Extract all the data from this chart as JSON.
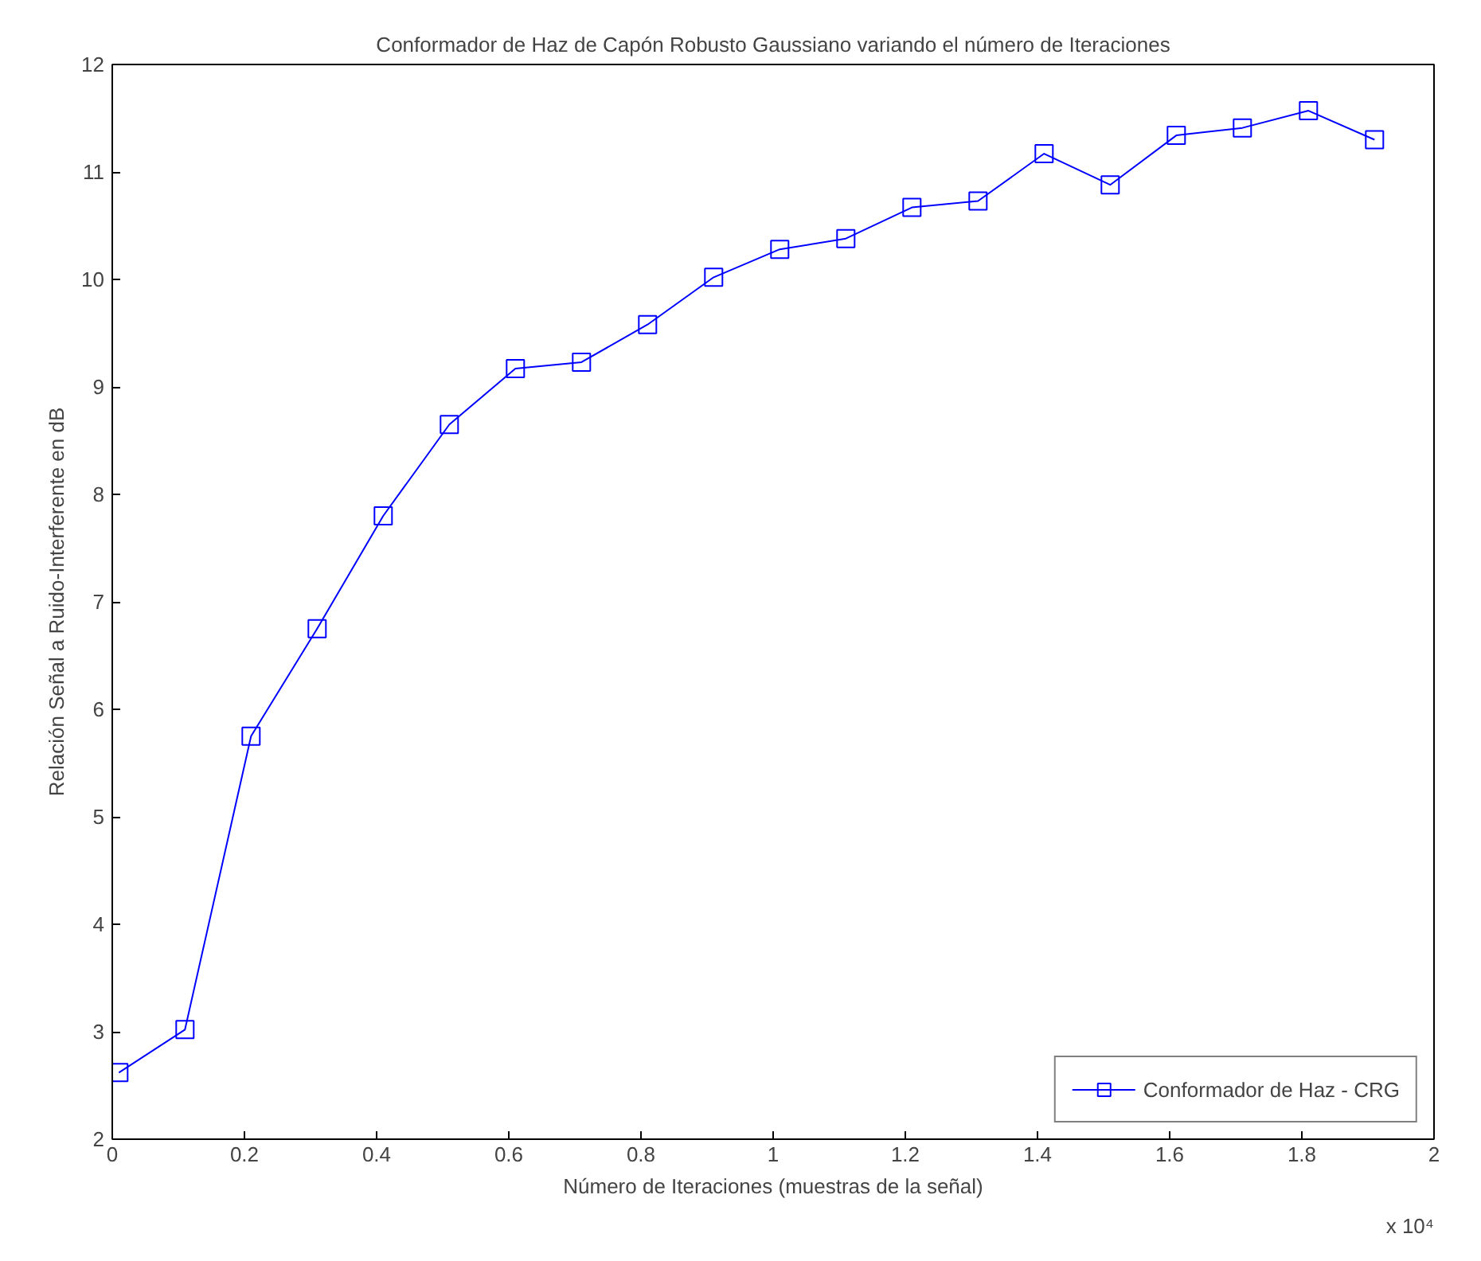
{
  "chart_data": {
    "type": "line",
    "title": "Conformador de Haz de Capón Robusto Gaussiano variando el número de Iteraciones",
    "xlabel": "Número de Iteraciones (muestras de la señal)",
    "ylabel": "Relación Señal a Ruido-Interferente en dB",
    "annotations": [
      "x 10⁴"
    ],
    "x": [
      0.01,
      0.11,
      0.21,
      0.31,
      0.41,
      0.51,
      0.61,
      0.71,
      0.81,
      0.91,
      1.01,
      1.11,
      1.21,
      1.31,
      1.41,
      1.51,
      1.61,
      1.71,
      1.81,
      1.91
    ],
    "series": [
      {
        "name": "Conformador de Haz - CRG",
        "color": "#0000ff",
        "values": [
          2.62,
          3.02,
          5.75,
          6.75,
          7.8,
          8.65,
          9.17,
          9.23,
          9.58,
          10.02,
          10.28,
          10.38,
          10.67,
          10.73,
          11.17,
          10.88,
          11.34,
          11.41,
          11.57,
          11.3
        ]
      }
    ],
    "xlim": [
      0,
      2
    ],
    "xticks": [
      0,
      0.2,
      0.4,
      0.6,
      0.8,
      1,
      1.2,
      1.4,
      1.6,
      1.8,
      2
    ],
    "ylim": [
      2,
      12
    ],
    "yticks": [
      2,
      3,
      4,
      5,
      6,
      7,
      8,
      9,
      10,
      11,
      12
    ],
    "grid": false,
    "legend": "bottom right",
    "marker": "square",
    "line_style": "solid"
  }
}
